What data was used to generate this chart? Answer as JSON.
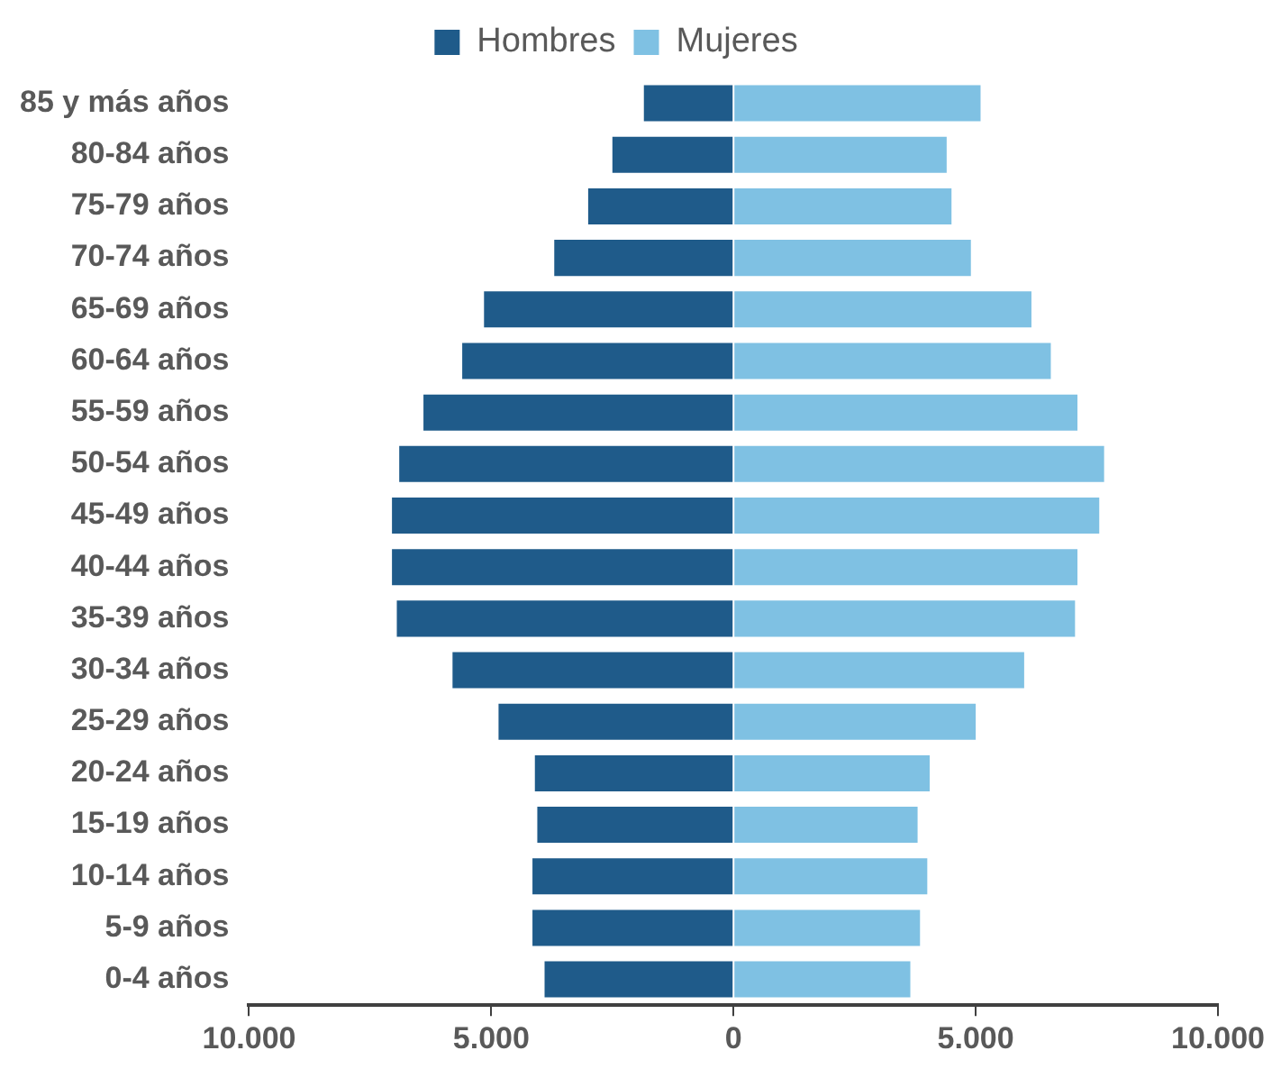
{
  "chart_data": {
    "type": "bar",
    "orientation": "horizontal",
    "stacked": true,
    "legend": "top",
    "grid": false,
    "categories": [
      "85 y más años",
      "80-84 años",
      "75-79 años",
      "70-74 años",
      "65-69 años",
      "60-64 años",
      "55-59 años",
      "50-54 años",
      "45-49 años",
      "40-44 años",
      "35-39 años",
      "30-34 años",
      "25-29 años",
      "20-24 años",
      "15-19 años",
      "10-14 años",
      "5-9 años",
      "0-4 años"
    ],
    "series": [
      {
        "name": "Hombres",
        "color": "#1f5b8a",
        "values": [
          -1850,
          -2500,
          -3000,
          -3700,
          -5150,
          -5600,
          -6400,
          -6900,
          -7050,
          -7050,
          -6950,
          -5800,
          -4850,
          -4100,
          -4050,
          -4150,
          -4150,
          -3900
        ]
      },
      {
        "name": "Mujeres",
        "color": "#7fc1e3",
        "values": [
          5100,
          4400,
          4500,
          4900,
          6150,
          6550,
          7100,
          7650,
          7550,
          7100,
          7050,
          6000,
          5000,
          4050,
          3800,
          4000,
          3850,
          3650
        ]
      }
    ],
    "xlim": [
      -10000,
      10000
    ],
    "xticks": [
      {
        "value": -10000,
        "label": "10.000"
      },
      {
        "value": -5000,
        "label": "5.000"
      },
      0,
      {
        "value": 5000,
        "label": "5.000"
      },
      {
        "value": 10000,
        "label": "10.000"
      }
    ]
  }
}
